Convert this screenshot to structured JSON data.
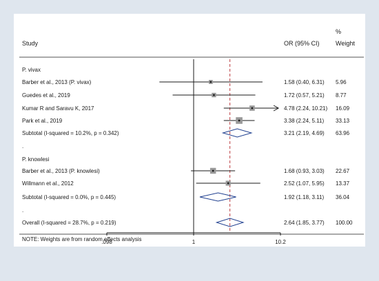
{
  "header": {
    "study": "Study",
    "or_ci": "OR (95% CI)",
    "pct": "%",
    "weight": "Weight"
  },
  "note": "NOTE: Weights are from random effects analysis",
  "separator": ".",
  "colors": {
    "background_outer": "#dfe6ee",
    "plot_background": "#ffffff",
    "line": "#1a1a1a",
    "diamond": "#1f3f8f",
    "square": "#999999",
    "reference_dashed": "#b3262b"
  },
  "chart_data": {
    "type": "forest",
    "scale": "log",
    "x_ticks": [
      {
        "value": 0.098,
        "label": ".098"
      },
      {
        "value": 1,
        "label": "1"
      },
      {
        "value": 10.2,
        "label": "10.2"
      }
    ],
    "xlim": [
      0.098,
      10.2
    ],
    "null_line": 1,
    "overall_line": 2.64,
    "rows": [
      {
        "kind": "group",
        "label": "P. vivax"
      },
      {
        "kind": "study",
        "label": "Barber et al., 2013 (P. vivax)",
        "or": 1.58,
        "lo": 0.4,
        "hi": 6.31,
        "ci_text": "1.58 (0.40, 6.31)",
        "weight": 5.96,
        "weight_text": "5.96"
      },
      {
        "kind": "study",
        "label": "Guedes et al., 2019",
        "or": 1.72,
        "lo": 0.57,
        "hi": 5.21,
        "ci_text": "1.72 (0.57, 5.21)",
        "weight": 8.77,
        "weight_text": "8.77"
      },
      {
        "kind": "study",
        "label": "Kumar R and Saravu K, 2017",
        "or": 4.78,
        "lo": 2.24,
        "hi": 10.21,
        "ci_text": "4.78 (2.24, 10.21)",
        "weight": 16.09,
        "weight_text": "16.09",
        "arrow": true
      },
      {
        "kind": "study",
        "label": "Park et al., 2019",
        "or": 3.38,
        "lo": 2.24,
        "hi": 5.11,
        "ci_text": "3.38 (2.24, 5.11)",
        "weight": 33.13,
        "weight_text": "33.13"
      },
      {
        "kind": "subtotal",
        "label": "Subtotal  (I-squared = 10.2%, p = 0.342)",
        "or": 3.21,
        "lo": 2.19,
        "hi": 4.69,
        "ci_text": "3.21 (2.19, 4.69)",
        "weight_text": "63.96"
      },
      {
        "kind": "sep",
        "label": "."
      },
      {
        "kind": "group",
        "label": "P. knowlesi"
      },
      {
        "kind": "study",
        "label": "Barber et al., 2013 (P. knowlesi)",
        "or": 1.68,
        "lo": 0.93,
        "hi": 3.03,
        "ci_text": "1.68 (0.93, 3.03)",
        "weight": 22.67,
        "weight_text": "22.67"
      },
      {
        "kind": "study",
        "label": "Willmann et al., 2012",
        "or": 2.52,
        "lo": 1.07,
        "hi": 5.95,
        "ci_text": "2.52 (1.07, 5.95)",
        "weight": 13.37,
        "weight_text": "13.37"
      },
      {
        "kind": "subtotal",
        "label": "Subtotal  (I-squared = 0.0%, p = 0.445)",
        "or": 1.92,
        "lo": 1.18,
        "hi": 3.11,
        "ci_text": "1.92 (1.18, 3.11)",
        "weight_text": "36.04"
      },
      {
        "kind": "sep",
        "label": "."
      },
      {
        "kind": "overall",
        "label": "Overall  (I-squared = 28.7%, p = 0.219)",
        "or": 2.64,
        "lo": 1.85,
        "hi": 3.77,
        "ci_text": "2.64 (1.85, 3.77)",
        "weight_text": "100.00"
      }
    ]
  }
}
